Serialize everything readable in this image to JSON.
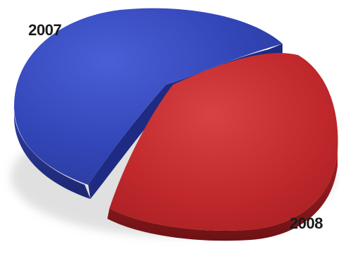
{
  "chart_data": {
    "type": "pie",
    "style": "3d-exploded",
    "categories": [
      "2007",
      "2008"
    ],
    "values": [
      52,
      48
    ],
    "colors": [
      "#3346b8",
      "#c0282c"
    ],
    "legend": "none"
  }
}
